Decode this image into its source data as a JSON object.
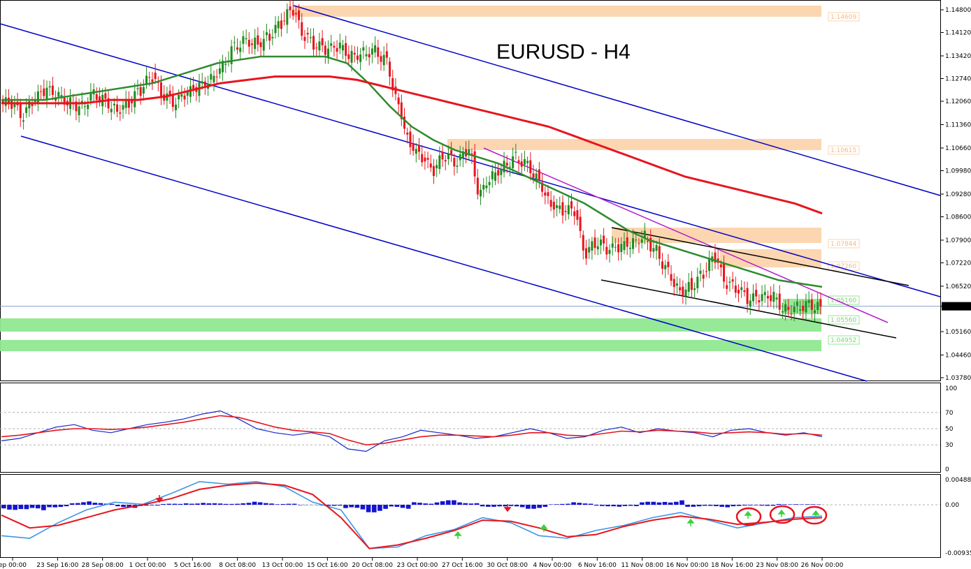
{
  "chart_data": {
    "type": "candlestick",
    "title": "EURUSD - H4",
    "symbol": "EURUSD",
    "timeframe": "H4",
    "price_axis": {
      "ticks": [
        "1.14800",
        "1.14120",
        "1.13420",
        "1.12740",
        "1.12060",
        "1.11360",
        "1.10660",
        "1.09980",
        "1.09280",
        "1.08600",
        "1.07900",
        "1.07220",
        "1.06520",
        "1.05920",
        "1.05160",
        "1.04460",
        "1.03780"
      ],
      "range": [
        1.0378,
        1.148
      ],
      "current_price": "1.05920"
    },
    "time_axis": {
      "labels": [
        "ep 00:00",
        "23 Sep 16:00",
        "28 Sep 08:00",
        "1 Oct 00:00",
        "5 Oct 16:00",
        "8 Oct 08:00",
        "13 Oct 00:00",
        "15 Oct 16:00",
        "20 Oct 08:00",
        "23 Oct 00:00",
        "27 Oct 16:00",
        "30 Oct 08:00",
        "4 Nov 00:00",
        "6 Nov 16:00",
        "11 Nov 08:00",
        "16 Nov 00:00",
        "18 Nov 16:00",
        "23 Nov 08:00",
        "26 Nov 00:00"
      ]
    },
    "close_series": [
      1.12,
      1.116,
      1.121,
      1.124,
      1.122,
      1.12,
      1.119,
      1.123,
      1.121,
      1.118,
      1.12,
      1.124,
      1.128,
      1.122,
      1.12,
      1.123,
      1.125,
      1.127,
      1.131,
      1.137,
      1.139,
      1.138,
      1.14,
      1.144,
      1.148,
      1.14,
      1.137,
      1.136,
      1.137,
      1.134,
      1.135,
      1.136,
      1.133,
      1.12,
      1.108,
      1.104,
      1.1,
      1.104,
      1.102,
      1.106,
      1.093,
      1.098,
      1.101,
      1.104,
      1.102,
      1.097,
      1.09,
      1.088,
      1.088,
      1.075,
      1.078,
      1.076,
      1.077,
      1.078,
      1.08,
      1.076,
      1.07,
      1.064,
      1.065,
      1.069,
      1.074,
      1.066,
      1.064,
      1.061,
      1.062,
      1.062,
      1.058,
      1.059,
      1.06,
      1.059
    ],
    "series": [
      {
        "name": "",
        "color": "#2e8b2e",
        "values": [
          1.121,
          1.121,
          1.121,
          1.122,
          1.123,
          1.124,
          1.125,
          1.126,
          1.128,
          1.13,
          1.132,
          1.133,
          1.134,
          1.134,
          1.134,
          1.134,
          1.132,
          1.126,
          1.119,
          1.113,
          1.109,
          1.106,
          1.104,
          1.102,
          1.099,
          1.096,
          1.093,
          1.09,
          1.086,
          1.082,
          1.079,
          1.077,
          1.075,
          1.073,
          1.071,
          1.069,
          1.067,
          1.066,
          1.065
        ]
      },
      {
        "name": "",
        "color": "#e8141e",
        "values": [
          1.12,
          1.12,
          1.12,
          1.12,
          1.121,
          1.121,
          1.122,
          1.124,
          1.126,
          1.127,
          1.128,
          1.128,
          1.128,
          1.127,
          1.125,
          1.123,
          1.121,
          1.119,
          1.117,
          1.115,
          1.113,
          1.11,
          1.107,
          1.104,
          1.101,
          1.098,
          1.096,
          1.094,
          1.092,
          1.09,
          1.087
        ]
      }
    ],
    "zones": [
      {
        "label": "1.14609",
        "color": "#fcd4ac",
        "kind": "supply"
      },
      {
        "label": "1.10615",
        "color": "#fcd4ac",
        "kind": "supply"
      },
      {
        "label": "1.07844",
        "color": "#fcd4ac",
        "kind": "supply"
      },
      {
        "label": "1.07260",
        "color": "#fcd4ac",
        "kind": "supply"
      },
      {
        "label": "1.05160",
        "color": "#90e890",
        "kind": "demand"
      },
      {
        "label": "1.05560",
        "color": "#90e890",
        "kind": "demand"
      },
      {
        "label": "1.04952",
        "color": "#90e890",
        "kind": "demand"
      }
    ],
    "rsi": {
      "ticks": [
        "100",
        "70",
        "50",
        "30",
        "0"
      ],
      "levels": [
        70,
        50,
        30
      ],
      "fast": [
        35,
        38,
        45,
        52,
        55,
        48,
        45,
        50,
        55,
        58,
        62,
        68,
        72,
        62,
        50,
        45,
        42,
        45,
        40,
        25,
        22,
        35,
        40,
        48,
        45,
        42,
        38,
        40,
        45,
        50,
        45,
        38,
        40,
        48,
        52,
        45,
        50,
        47,
        45,
        40,
        48,
        50,
        45,
        42,
        45,
        40
      ],
      "slow": [
        40,
        42,
        45,
        48,
        50,
        50,
        49,
        50,
        52,
        55,
        58,
        62,
        66,
        64,
        58,
        52,
        48,
        46,
        44,
        36,
        30,
        32,
        36,
        40,
        42,
        42,
        41,
        40,
        42,
        45,
        45,
        42,
        41,
        44,
        47,
        46,
        48,
        47,
        46,
        44,
        45,
        46,
        45,
        43,
        44,
        42
      ]
    },
    "macd": {
      "ticks": [
        "0.00488",
        "0.00",
        "-0.00935"
      ],
      "histogram": [
        -0.001,
        -0.0015,
        -0.0005,
        0.0007,
        0.0004,
        -0.0006,
        -0.0003,
        0.0002,
        0.0005,
        0.0003,
        0.0004,
        0.0006,
        0.0002,
        -0.0001,
        -0.0002,
        -0.0012,
        -0.0015,
        -0.0008,
        0.0005,
        0.0009,
        0.0006,
        -0.0004,
        -0.0006,
        -0.0008,
        0.0002,
        0.0005,
        -0.0003,
        -0.0005,
        0.0006,
        0.0011,
        -0.0004,
        -0.0005,
        -0.0003,
        -0.0002,
        0.0002,
        0.0001
      ],
      "macd_line": [
        -0.006,
        -0.0065,
        -0.0035,
        -0.001,
        0.0005,
        0.0001,
        0.0022,
        0.0045,
        0.004,
        0.0045,
        0.0035,
        0.0005,
        -0.001,
        -0.0085,
        -0.0082,
        -0.006,
        -0.0048,
        -0.0025,
        -0.0035,
        -0.006,
        -0.0065,
        -0.005,
        -0.004,
        -0.0025,
        -0.0015,
        -0.003,
        -0.0045,
        -0.0035,
        -0.0025,
        -0.0022
      ],
      "signal_line": [
        -0.002,
        -0.0045,
        -0.004,
        -0.0025,
        -0.001,
        0.0,
        0.0012,
        0.003,
        0.0038,
        0.0042,
        0.0038,
        0.002,
        -0.0025,
        -0.0085,
        -0.0078,
        -0.0065,
        -0.005,
        -0.003,
        -0.0032,
        -0.0045,
        -0.0062,
        -0.0058,
        -0.0042,
        -0.003,
        -0.0022,
        -0.0028,
        -0.0038,
        -0.0034,
        -0.0028,
        -0.0025
      ]
    }
  }
}
